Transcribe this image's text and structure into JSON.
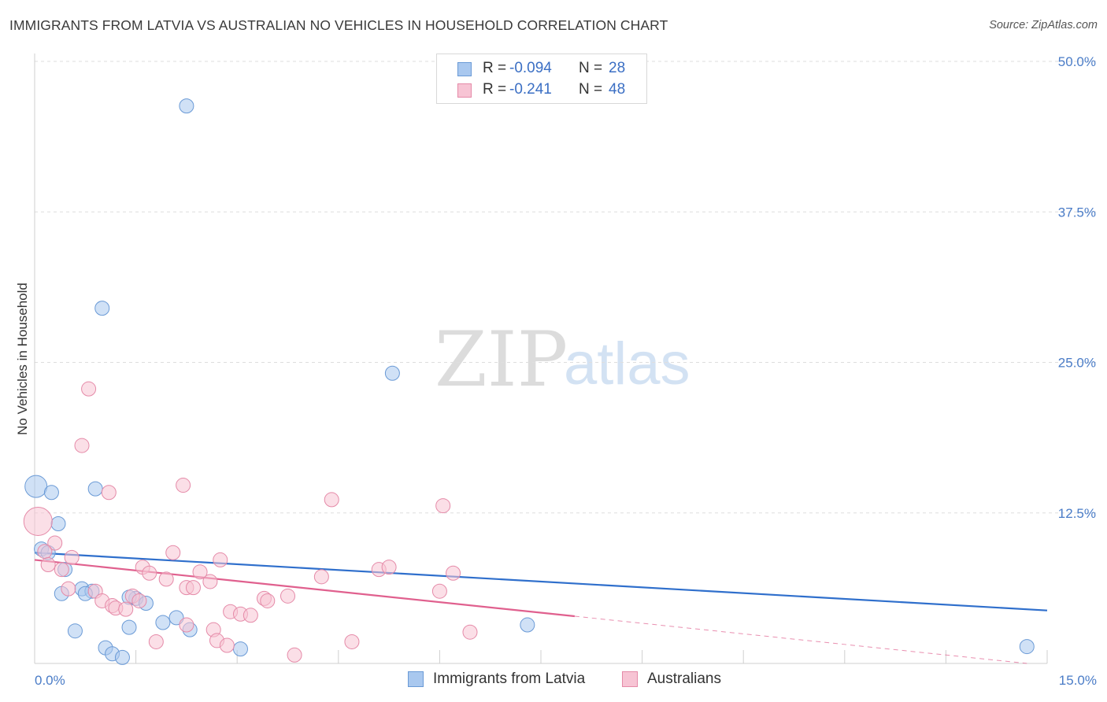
{
  "title": "IMMIGRANTS FROM LATVIA VS AUSTRALIAN NO VEHICLES IN HOUSEHOLD CORRELATION CHART",
  "source": "Source: ZipAtlas.com",
  "watermark": {
    "zip": "ZIP",
    "atlas": "atlas"
  },
  "stats": [
    {
      "r_label": "R =",
      "r_value": "-0.094",
      "n_label": "N =",
      "n_value": "28",
      "color": "#a9c8ef",
      "border": "#6a9ad6"
    },
    {
      "r_label": "R =",
      "r_value": "-0.241",
      "n_label": "N =",
      "n_value": "48",
      "color": "#f7c4d4",
      "border": "#e58aa8"
    }
  ],
  "legend": [
    {
      "label": "Immigrants from Latvia",
      "color": "#a9c8ef",
      "border": "#6a9ad6"
    },
    {
      "label": "Australians",
      "color": "#f7c4d4",
      "border": "#e58aa8"
    }
  ],
  "chart_data": {
    "type": "scatter",
    "ylabel": "No Vehicles in Household",
    "xlabel": "",
    "xlim": [
      0,
      15
    ],
    "ylim": [
      0,
      50
    ],
    "x_tick_labels": [
      {
        "value": 0,
        "label": "0.0%"
      },
      {
        "value": 15,
        "label": "15.0%"
      }
    ],
    "y_tick_labels": [
      {
        "value": 12.5,
        "label": "12.5%"
      },
      {
        "value": 25,
        "label": "25.0%"
      },
      {
        "value": 37.5,
        "label": "37.5%"
      },
      {
        "value": 50,
        "label": "50.0%"
      }
    ],
    "series": [
      {
        "name": "Immigrants from Latvia",
        "color": "#a9c8ef",
        "stroke": "#6a9ad6",
        "line_color": "#2f6fcc",
        "trend": {
          "x0": 0,
          "y0": 9.2,
          "x1": 15,
          "y1": 4.4,
          "dashed_from": null
        },
        "points": [
          [
            0.02,
            14.7,
            14
          ],
          [
            0.25,
            14.2,
            9
          ],
          [
            0.9,
            14.5,
            9
          ],
          [
            0.35,
            11.6,
            9
          ],
          [
            0.1,
            9.5,
            9
          ],
          [
            0.2,
            9.2,
            9
          ],
          [
            0.45,
            7.8,
            9
          ],
          [
            0.4,
            5.8,
            9
          ],
          [
            0.7,
            6.2,
            9
          ],
          [
            0.85,
            6.0,
            9
          ],
          [
            0.75,
            5.8,
            9
          ],
          [
            1.5,
            5.4,
            9
          ],
          [
            1.65,
            5.0,
            9
          ],
          [
            1.4,
            3.0,
            9
          ],
          [
            1.9,
            3.4,
            9
          ],
          [
            2.1,
            3.8,
            9
          ],
          [
            2.3,
            2.8,
            9
          ],
          [
            0.6,
            2.7,
            9
          ],
          [
            1.05,
            1.3,
            9
          ],
          [
            1.15,
            0.8,
            9
          ],
          [
            1.3,
            0.5,
            9
          ],
          [
            3.05,
            1.2,
            9
          ],
          [
            7.3,
            3.2,
            9
          ],
          [
            14.7,
            1.4,
            9
          ],
          [
            1.0,
            29.5,
            9
          ],
          [
            2.25,
            46.3,
            9
          ],
          [
            5.3,
            24.1,
            9
          ],
          [
            1.4,
            5.5,
            9
          ]
        ]
      },
      {
        "name": "Australians",
        "color": "#f7c4d4",
        "stroke": "#e58aa8",
        "line_color": "#e0608e",
        "trend": {
          "x0": 0,
          "y0": 8.6,
          "x1": 14.7,
          "y1": 0.0,
          "dashed_from": 8.0
        },
        "points": [
          [
            0.05,
            11.8,
            18
          ],
          [
            0.3,
            10.0,
            9
          ],
          [
            0.15,
            9.3,
            9
          ],
          [
            0.2,
            8.2,
            9
          ],
          [
            0.55,
            8.8,
            9
          ],
          [
            0.4,
            7.8,
            9
          ],
          [
            0.5,
            6.2,
            9
          ],
          [
            0.9,
            6.0,
            9
          ],
          [
            1.0,
            5.2,
            9
          ],
          [
            1.15,
            4.8,
            9
          ],
          [
            1.2,
            4.6,
            9
          ],
          [
            1.35,
            4.5,
            9
          ],
          [
            1.45,
            5.6,
            9
          ],
          [
            1.55,
            5.2,
            9
          ],
          [
            1.6,
            8.0,
            9
          ],
          [
            1.7,
            7.5,
            9
          ],
          [
            1.95,
            7.0,
            9
          ],
          [
            2.05,
            9.2,
            9
          ],
          [
            2.25,
            6.3,
            9
          ],
          [
            2.35,
            6.3,
            9
          ],
          [
            2.45,
            7.6,
            9
          ],
          [
            2.6,
            6.8,
            9
          ],
          [
            2.75,
            8.6,
            9
          ],
          [
            2.65,
            2.8,
            9
          ],
          [
            2.7,
            1.9,
            9
          ],
          [
            2.85,
            1.5,
            9
          ],
          [
            2.9,
            4.3,
            9
          ],
          [
            3.05,
            4.1,
            9
          ],
          [
            3.2,
            4.0,
            9
          ],
          [
            3.4,
            5.4,
            9
          ],
          [
            3.45,
            5.2,
            9
          ],
          [
            3.75,
            5.6,
            9
          ],
          [
            3.85,
            0.7,
            9
          ],
          [
            4.25,
            7.2,
            9
          ],
          [
            4.4,
            13.6,
            9
          ],
          [
            4.7,
            1.8,
            9
          ],
          [
            5.1,
            7.8,
            9
          ],
          [
            5.25,
            8.0,
            9
          ],
          [
            6.0,
            6.0,
            9
          ],
          [
            6.05,
            13.1,
            9
          ],
          [
            6.2,
            7.5,
            9
          ],
          [
            6.45,
            2.6,
            9
          ],
          [
            1.8,
            1.8,
            9
          ],
          [
            2.25,
            3.2,
            9
          ],
          [
            0.8,
            22.8,
            9
          ],
          [
            0.7,
            18.1,
            9
          ],
          [
            1.1,
            14.2,
            9
          ],
          [
            2.2,
            14.8,
            9
          ]
        ]
      }
    ]
  }
}
